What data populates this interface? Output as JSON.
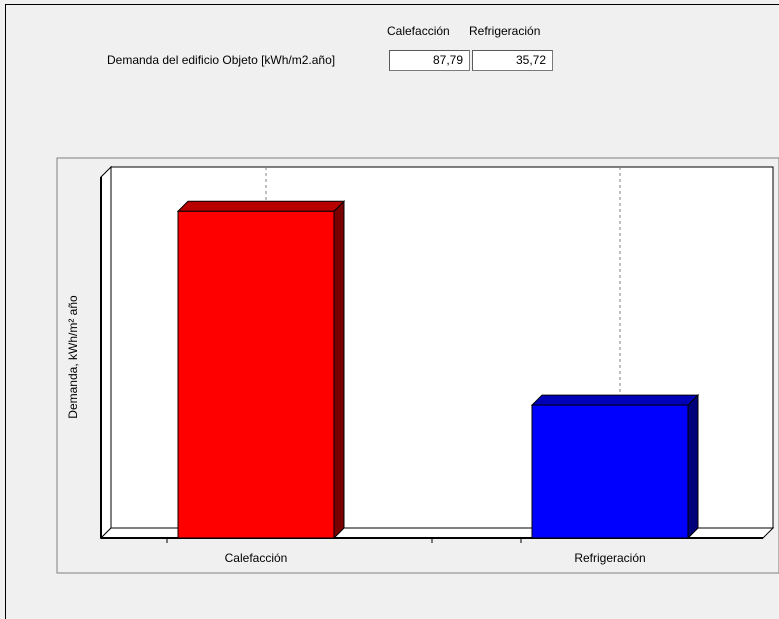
{
  "header": {
    "col1": "Calefacción",
    "col2": "Refrigeración",
    "row_label": "Demanda del edificio Objeto [kWh/m2.año]",
    "value1": "87,79",
    "value2": "35,72"
  },
  "chart_data": {
    "type": "bar",
    "title": "",
    "xlabel": "",
    "ylabel": "Demanda, kWh/m² año",
    "categories": [
      "Calefacción",
      "Refrigeración"
    ],
    "values": [
      87.79,
      35.72
    ],
    "colors": [
      "#ff0000",
      "#0000ff"
    ],
    "ylim": [
      0,
      97
    ],
    "grid": "vertical dashed",
    "legend": "none",
    "style": "3d"
  }
}
